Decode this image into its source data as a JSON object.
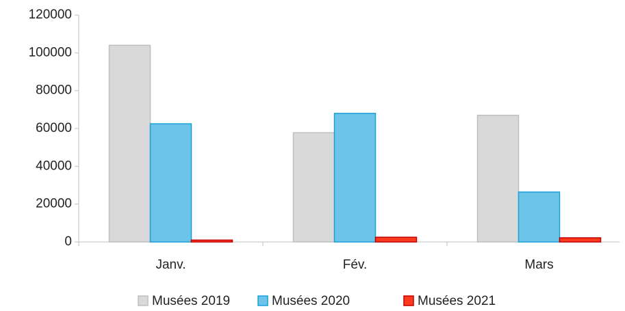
{
  "chart_data": {
    "type": "bar",
    "categories": [
      "Janv.",
      "Fév.",
      "Mars"
    ],
    "series": [
      {
        "name": "Musées 2019",
        "color": "#d9d9d9",
        "values": [
          104000,
          57800,
          67000
        ]
      },
      {
        "name": "Musées 2020",
        "color": "#6cc5e9",
        "values": [
          62500,
          68000,
          26400
        ]
      },
      {
        "name": "Musées 2021",
        "color": "#ff3b1f",
        "values": [
          1000,
          2500,
          2200
        ]
      }
    ],
    "ylim": [
      0,
      120000
    ],
    "yticks": [
      0,
      20000,
      40000,
      60000,
      80000,
      100000,
      120000
    ],
    "grid": false,
    "legend": "bottom"
  }
}
